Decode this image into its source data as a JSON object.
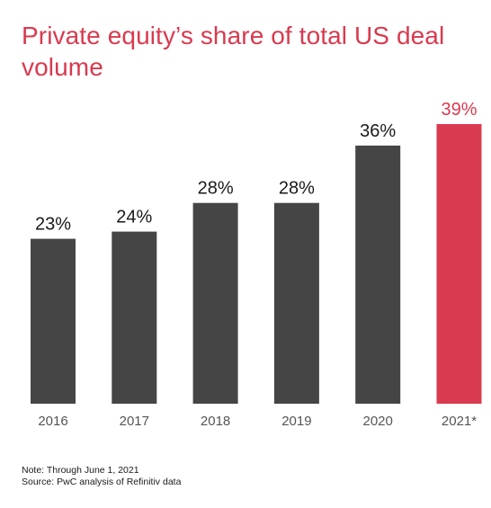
{
  "title": "Private equity’s share of total US deal volume",
  "colors": {
    "bar_default": "#454545",
    "bar_highlight": "#d93a4f",
    "label_default": "#1a1a1a",
    "tick_label": "#555555",
    "baseline": "#bdbdbd"
  },
  "chart_data": {
    "type": "bar",
    "title": "Private equity’s share of total US deal volume",
    "categories": [
      "2016",
      "2017",
      "2018",
      "2019",
      "2020",
      "2021*"
    ],
    "values": [
      23,
      24,
      28,
      28,
      36,
      39
    ],
    "data_labels": [
      "23%",
      "24%",
      "28%",
      "28%",
      "36%",
      "39%"
    ],
    "unit": "%",
    "highlight_index": 5,
    "ylim": [
      0,
      40
    ],
    "grid": false,
    "xlabel": "",
    "ylabel": ""
  },
  "footnote": {
    "note": "Note: Through June 1, 2021",
    "source": "Source: PwC analysis of Refinitiv data"
  }
}
